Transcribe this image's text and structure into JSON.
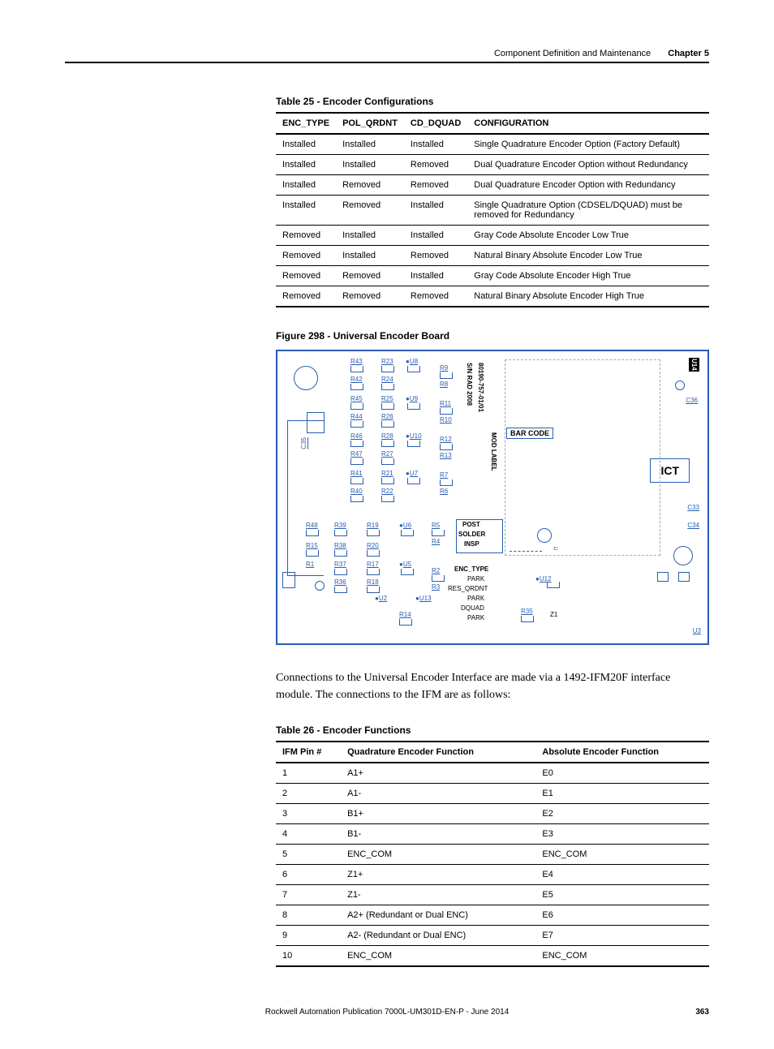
{
  "header": {
    "title": "Component Definition and Maintenance",
    "chapter": "Chapter 5"
  },
  "table25": {
    "caption": "Table 25 - Encoder Configurations",
    "columns": [
      "ENC_TYPE",
      "POL_QRDNT",
      "CD_DQUAD",
      "CONFIGURATION"
    ],
    "rows": [
      [
        "Installed",
        "Installed",
        "Installed",
        "Single Quadrature Encoder Option (Factory Default)"
      ],
      [
        "Installed",
        "Installed",
        "Removed",
        "Dual Quadrature Encoder Option without Redundancy"
      ],
      [
        "Installed",
        "Removed",
        "Removed",
        "Dual Quadrature Encoder Option with Redundancy"
      ],
      [
        "Installed",
        "Removed",
        "Installed",
        "Single Quadrature Option (CDSEL/DQUAD) must be removed for Redundancy"
      ],
      [
        "Removed",
        "Installed",
        "Installed",
        "Gray Code Absolute Encoder Low True"
      ],
      [
        "Removed",
        "Installed",
        "Removed",
        "Natural Binary Absolute Encoder Low True"
      ],
      [
        "Removed",
        "Removed",
        "Installed",
        "Gray Code Absolute Encoder High True"
      ],
      [
        "Removed",
        "Removed",
        "Removed",
        "Natural Binary Absolute Encoder High True"
      ]
    ]
  },
  "figure": {
    "caption": "Figure 298 - Universal Encoder Board",
    "barcode": "BAR CODE",
    "modlabel": "MOD LABEL",
    "post": "POST",
    "solder": "SOLDER",
    "insp": "INSP",
    "ict": "ICT",
    "enctype": "ENC_TYPE",
    "park1": "PARK",
    "res_qrdnt": "RES_QRDNT",
    "park2": "PARK",
    "dquad": "DQUAD",
    "park3": "PARK",
    "partno": "80190-757-01/01",
    "swrad": "S/N  RAD  2008"
  },
  "body_text": "Connections to the Universal Encoder Interface are made via a 1492-IFM20F interface module. The connections to the IFM are as follows:",
  "table26": {
    "caption": "Table 26 - Encoder Functions",
    "columns": [
      "IFM Pin #",
      "Quadrature Encoder Function",
      "Absolute Encoder Function"
    ],
    "rows": [
      [
        "1",
        "A1+",
        "E0"
      ],
      [
        "2",
        "A1-",
        "E1"
      ],
      [
        "3",
        "B1+",
        "E2"
      ],
      [
        "4",
        "B1-",
        "E3"
      ],
      [
        "5",
        "ENC_COM",
        "ENC_COM"
      ],
      [
        "6",
        "Z1+",
        "E4"
      ],
      [
        "7",
        "Z1-",
        "E5"
      ],
      [
        "8",
        "A2+ (Redundant or Dual ENC)",
        "E6"
      ],
      [
        "9",
        "A2- (Redundant or Dual ENC)",
        "E7"
      ],
      [
        "10",
        "ENC_COM",
        "ENC_COM"
      ]
    ]
  },
  "footer": {
    "pub": "Rockwell Automation Publication 7000L-UM301D-EN-P - June 2014",
    "page": "363"
  }
}
